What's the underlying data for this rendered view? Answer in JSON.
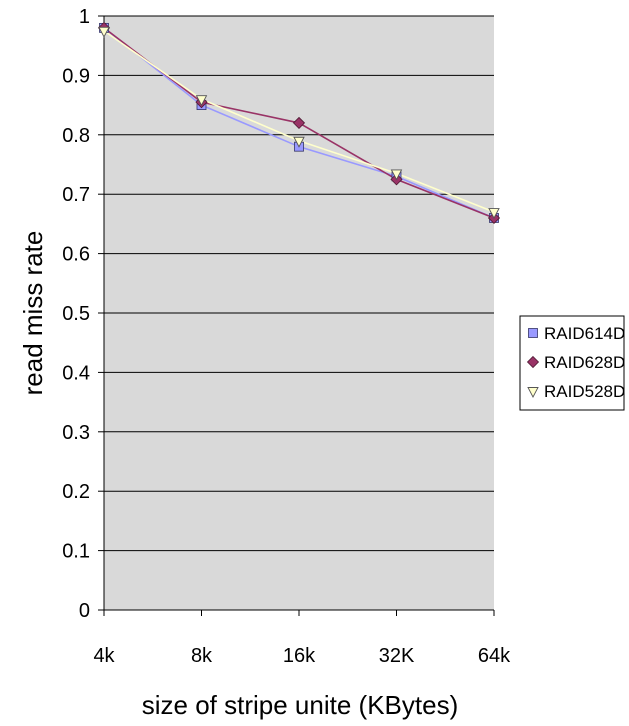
{
  "chart_data": {
    "type": "line",
    "title": "",
    "xlabel": "size of stripe unite (KBytes)",
    "ylabel": "read miss rate",
    "categories": [
      "4k",
      "8k",
      "16k",
      "32K",
      "64k"
    ],
    "ylim": [
      0,
      1
    ],
    "yticks": [
      "0",
      "0.1",
      "0.2",
      "0.3",
      "0.4",
      "0.5",
      "0.6",
      "0.7",
      "0.8",
      "0.9",
      "1"
    ],
    "grid": true,
    "legend_position": "right",
    "plot_background": "#d9d9d9",
    "series": [
      {
        "name": "RAID614D",
        "values": [
          0.98,
          0.85,
          0.78,
          0.73,
          0.66
        ],
        "color": "#9999ff",
        "marker": "square"
      },
      {
        "name": "RAID628D",
        "values": [
          0.98,
          0.855,
          0.82,
          0.725,
          0.66
        ],
        "color": "#993366",
        "marker": "diamond"
      },
      {
        "name": "RAID528D",
        "values": [
          0.975,
          0.86,
          0.79,
          0.735,
          0.67
        ],
        "color": "#ffffcc",
        "marker": "triangle-down"
      }
    ]
  }
}
